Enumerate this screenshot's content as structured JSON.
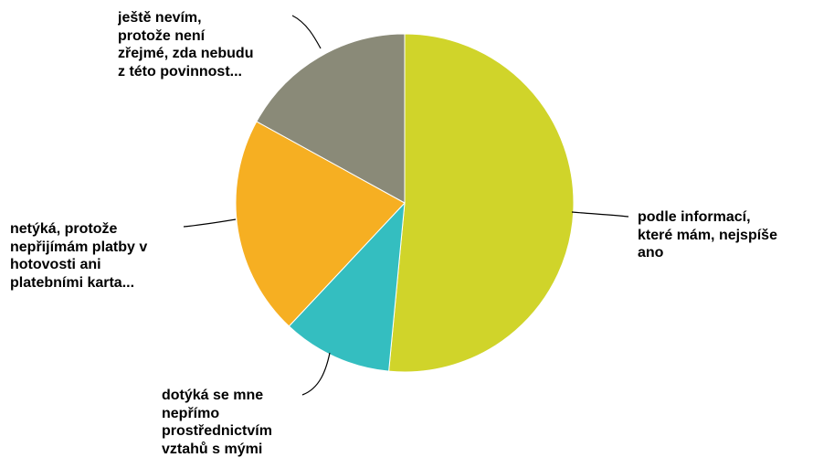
{
  "chart_data": {
    "type": "pie",
    "start_angle": "12 o'clock",
    "direction": "clockwise",
    "legend": "none",
    "slices": [
      {
        "label": "podle informací,\nkteré mám, nejspíše\nano",
        "value": 51.5,
        "color": "#D0D42A"
      },
      {
        "label": "dotýká se mne\nnepřímo\nprostřednictvím\nvztahů s mými",
        "value": 10.5,
        "color": "#34BEC0"
      },
      {
        "label": "netýká, protože\nnepřijímám platby v\nhotovosti ani\nplatebními karta...",
        "value": 21,
        "color": "#F6AF22"
      },
      {
        "label": "ještě nevím,\nprotože není\nzřejmé, zda nebudu\nz této povinnost...",
        "value": 17,
        "color": "#8A8A78"
      }
    ]
  }
}
